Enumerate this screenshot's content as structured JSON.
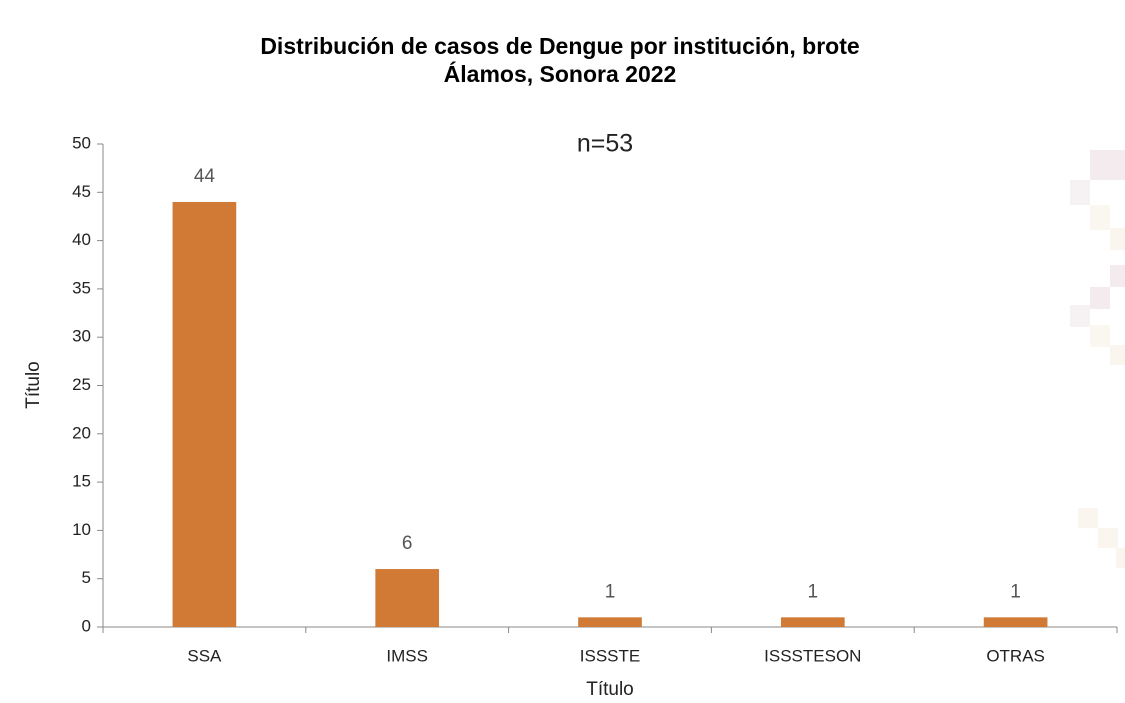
{
  "chart_data": {
    "type": "bar",
    "title": [
      "Distribución de casos de Dengue por institución, brote",
      "Álamos, Sonora 2022"
    ],
    "annotation": "n=53",
    "x_label": "Título",
    "y_label": "Título",
    "categories": [
      "SSA",
      "IMSS",
      "ISSSTE",
      "ISSSTESON",
      "OTRAS"
    ],
    "values": [
      44,
      6,
      1,
      1,
      1
    ],
    "color": "#d07a35",
    "ylim": [
      0,
      50
    ],
    "yticks": [
      0,
      5,
      10,
      15,
      20,
      25,
      30,
      35,
      40,
      45,
      50
    ],
    "grid": false
  }
}
